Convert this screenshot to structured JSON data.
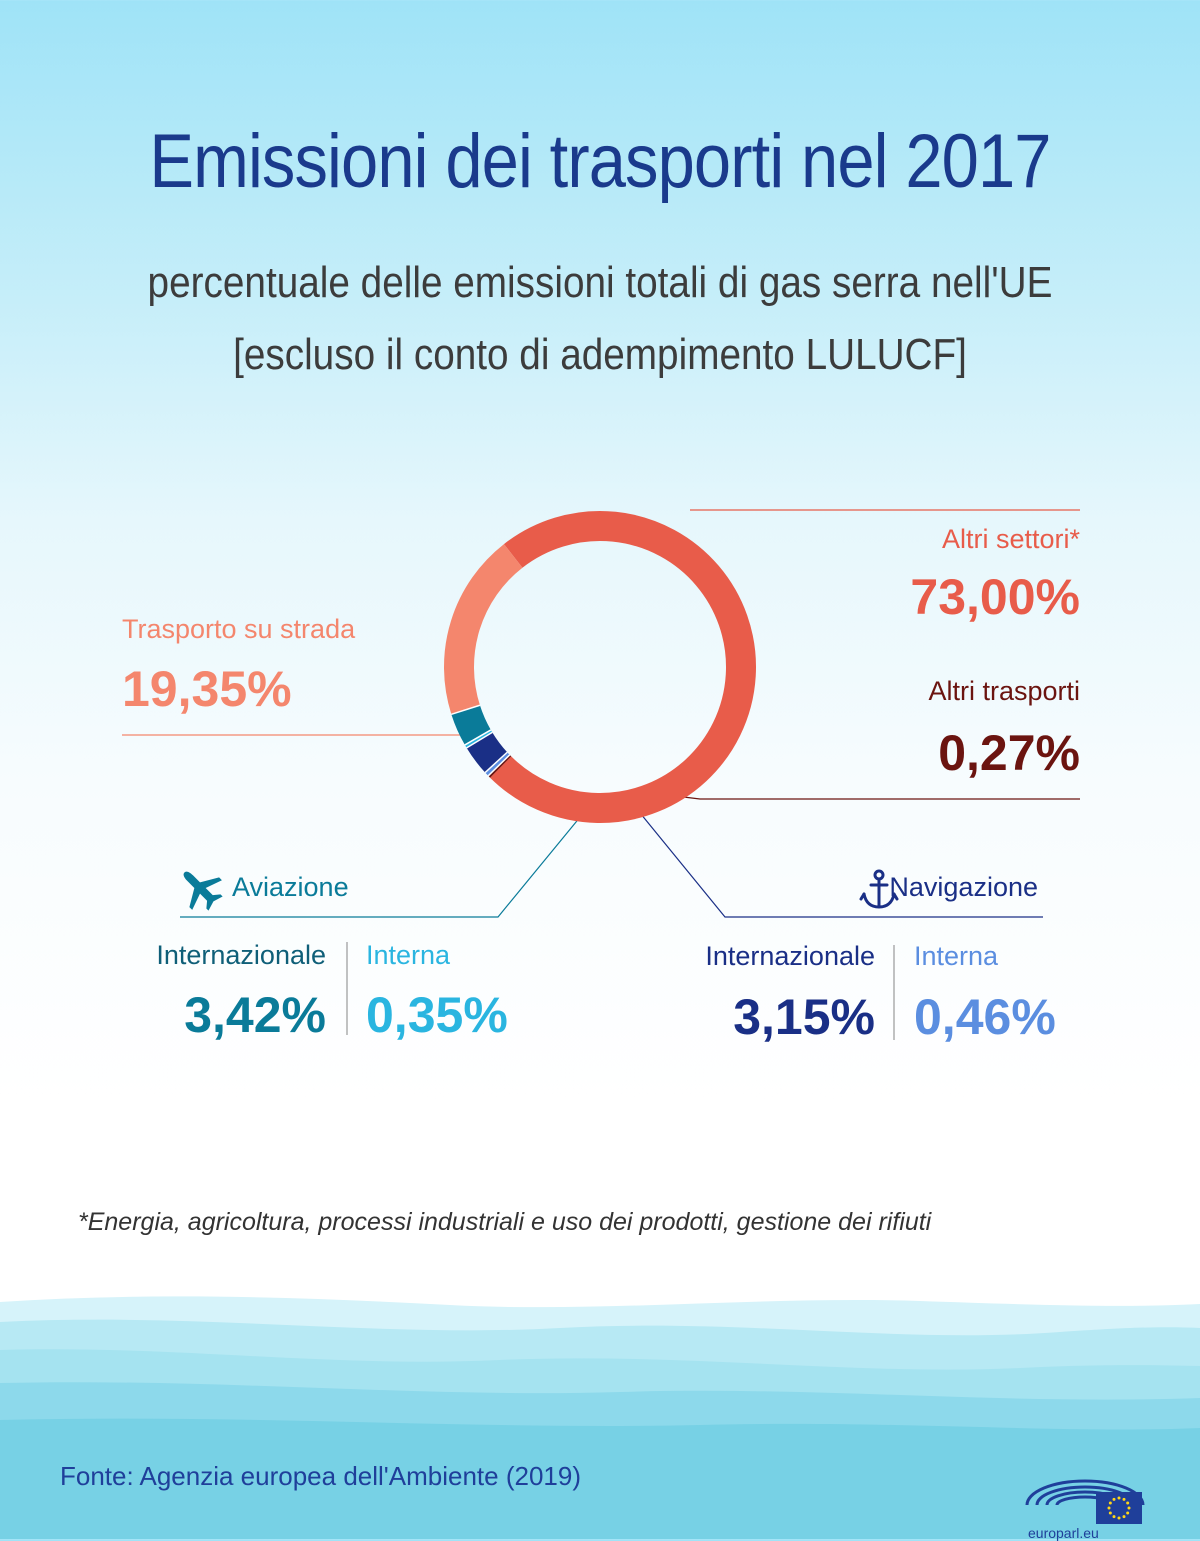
{
  "title": "Emissioni dei trasporti nel 2017",
  "subtitle_line1": "percentuale delle emissioni totali di gas serra nell'UE",
  "subtitle_line2": "[escluso il conto di adempimento LULUCF]",
  "colors": {
    "altri_settori": "#e85c4a",
    "trasporto_strada": "#f4866d",
    "aviazione_internazionale": "#0a7b99",
    "aviazione_interna": "#2ab5e0",
    "navigazione_internazionale": "#1a2f86",
    "navigazione_interna": "#5b8ee0",
    "altri_trasporti": "#6b1410",
    "title": "#1a3a8c"
  },
  "chart_data": {
    "type": "pie",
    "donut": true,
    "unit": "%",
    "slices": [
      {
        "label": "Altri settori*",
        "value": 73.0,
        "display": "73,00%"
      },
      {
        "label": "Trasporto su strada",
        "value": 19.35,
        "display": "19,35%"
      },
      {
        "label": "Aviazione Internazionale",
        "value": 3.42,
        "display": "3,42%"
      },
      {
        "label": "Aviazione Interna",
        "value": 0.35,
        "display": "0,35%"
      },
      {
        "label": "Navigazione Internazionale",
        "value": 3.15,
        "display": "3,15%"
      },
      {
        "label": "Navigazione Interna",
        "value": 0.46,
        "display": "0,46%"
      },
      {
        "label": "Altri trasporti",
        "value": 0.27,
        "display": "0,27%"
      }
    ]
  },
  "labels": {
    "altri_settori": {
      "name": "Altri settori*",
      "value": "73,00%"
    },
    "trasporto_strada": {
      "name": "Trasporto su strada",
      "value": "19,35%"
    },
    "altri_trasporti": {
      "name": "Altri trasporti",
      "value": "0,27%"
    },
    "aviazione": {
      "name": "Aviazione",
      "icon": "airplane-icon",
      "internazionale_label": "Internazionale",
      "internazionale_value": "3,42%",
      "interna_label": "Interna",
      "interna_value": "0,35%"
    },
    "navigazione": {
      "name": "Navigazione",
      "icon": "anchor-icon",
      "internazionale_label": "Internazionale",
      "internazionale_value": "3,15%",
      "interna_label": "Interna",
      "interna_value": "0,46%"
    }
  },
  "footnote": "*Energia, agricoltura, processi industriali e uso dei prodotti, gestione dei rifiuti",
  "source": "Fonte: Agenzia europea dell'Ambiente (2019)",
  "logo_text": "europarl.eu"
}
